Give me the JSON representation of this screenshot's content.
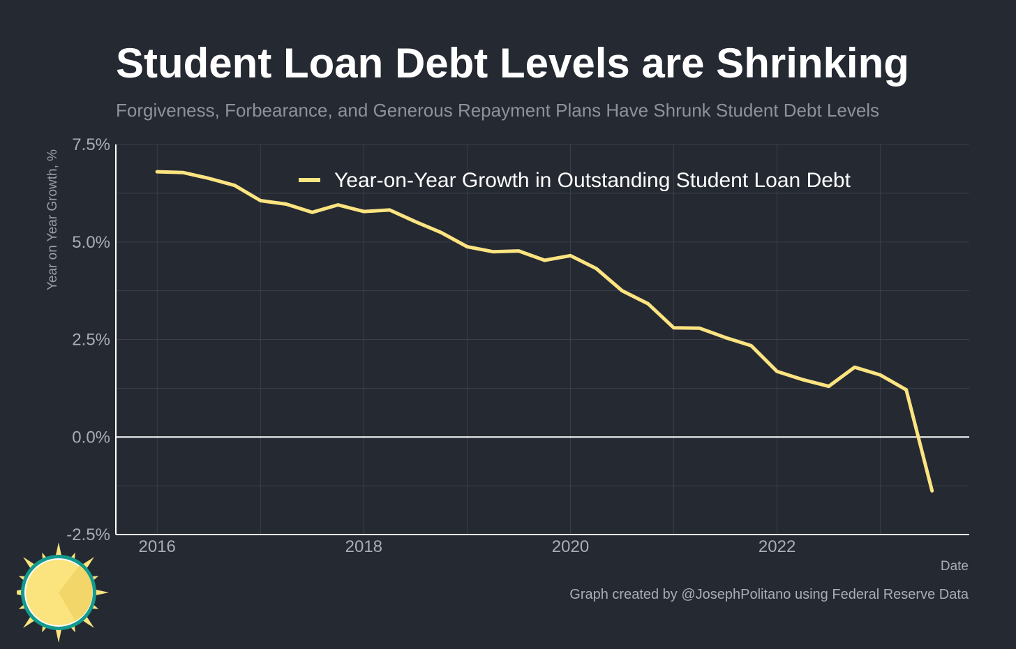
{
  "header": {
    "title": "Student Loan Debt Levels are Shrinking",
    "subtitle": "Forgiveness, Forbearance, and Generous Repayment Plans Have Shrunk Student Debt Levels"
  },
  "footer": {
    "credit": "Graph created by @JosephPolitano using Federal Reserve Data"
  },
  "colors": {
    "background": "#252932",
    "line": "#fce481",
    "grid": "#3a3f4a",
    "zero_line": "#ffffff"
  },
  "chart_data": {
    "type": "line",
    "title": "Student Loan Debt Levels are Shrinking",
    "subtitle": "Forgiveness, Forbearance, and Generous Repayment Plans Have Shrunk Student Debt Levels",
    "xlabel": "Date",
    "ylabel": "Year on Year Growth, %",
    "xlim": [
      2015.6,
      2023.86
    ],
    "ylim": [
      -2.5,
      7.5
    ],
    "x_ticks": [
      {
        "value": 2016,
        "label": "2016"
      },
      {
        "value": 2018,
        "label": "2018"
      },
      {
        "value": 2020,
        "label": "2020"
      },
      {
        "value": 2022,
        "label": "2022"
      }
    ],
    "x_minor": [
      2017,
      2019,
      2021,
      2023
    ],
    "y_ticks": [
      {
        "value": 7.5,
        "label": "7.5%"
      },
      {
        "value": 5.0,
        "label": "5.0%"
      },
      {
        "value": 2.5,
        "label": "2.5%"
      },
      {
        "value": 0.0,
        "label": "0.0%"
      },
      {
        "value": -2.5,
        "label": "-2.5%"
      }
    ],
    "y_minor": [
      6.25,
      3.75,
      1.25,
      -1.25
    ],
    "grid": true,
    "legend_position": "top",
    "series": [
      {
        "name": "Year-on-Year Growth in Outstanding Student Loan Debt",
        "color": "#fce481",
        "x": [
          2016.0,
          2016.25,
          2016.5,
          2016.75,
          2017.0,
          2017.25,
          2017.5,
          2017.75,
          2018.0,
          2018.25,
          2018.5,
          2018.75,
          2019.0,
          2019.25,
          2019.5,
          2019.75,
          2020.0,
          2020.25,
          2020.5,
          2020.75,
          2021.0,
          2021.25,
          2021.5,
          2021.75,
          2022.0,
          2022.25,
          2022.5,
          2022.75,
          2023.0,
          2023.25,
          2023.5
        ],
        "values": [
          6.8,
          6.78,
          6.63,
          6.45,
          6.06,
          5.97,
          5.76,
          5.95,
          5.78,
          5.82,
          5.52,
          5.24,
          4.88,
          4.75,
          4.77,
          4.53,
          4.65,
          4.32,
          3.75,
          3.42,
          2.8,
          2.79,
          2.55,
          2.34,
          1.68,
          1.47,
          1.3,
          1.79,
          1.59,
          1.21,
          -1.38
        ]
      }
    ]
  }
}
